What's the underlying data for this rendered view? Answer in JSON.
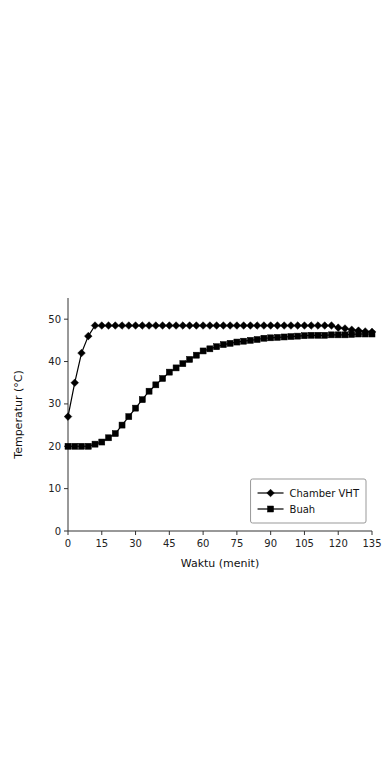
{
  "chart_data": {
    "type": "line",
    "xlabel": "Waktu (menit)",
    "ylabel": "Temperatur (°C)",
    "x": [
      0,
      3,
      6,
      9,
      12,
      15,
      18,
      21,
      24,
      27,
      30,
      33,
      36,
      39,
      42,
      45,
      48,
      51,
      54,
      57,
      60,
      63,
      66,
      69,
      72,
      75,
      78,
      81,
      84,
      87,
      90,
      93,
      96,
      99,
      102,
      105,
      108,
      111,
      114,
      117,
      120,
      123,
      126,
      129,
      132,
      135
    ],
    "series": [
      {
        "name": "Chamber VHT",
        "color": "#000000",
        "marker": "diamond",
        "values": [
          27,
          35,
          42,
          46,
          48.5,
          48.5,
          48.5,
          48.5,
          48.5,
          48.5,
          48.5,
          48.5,
          48.5,
          48.5,
          48.5,
          48.5,
          48.5,
          48.5,
          48.5,
          48.5,
          48.5,
          48.5,
          48.5,
          48.5,
          48.5,
          48.5,
          48.5,
          48.5,
          48.5,
          48.5,
          48.5,
          48.5,
          48.5,
          48.5,
          48.5,
          48.5,
          48.5,
          48.5,
          48.5,
          48.5,
          48.0,
          47.8,
          47.5,
          47.3,
          47.1,
          47.0
        ]
      },
      {
        "name": "Buah",
        "color": "#000000",
        "marker": "square",
        "values": [
          20,
          20,
          20,
          20,
          20.5,
          21,
          22,
          23,
          25,
          27,
          29,
          31,
          33,
          34.5,
          36,
          37.5,
          38.5,
          39.5,
          40.5,
          41.5,
          42.5,
          43.0,
          43.5,
          44.0,
          44.3,
          44.6,
          44.8,
          45.0,
          45.2,
          45.5,
          45.6,
          45.7,
          45.8,
          45.9,
          46.0,
          46.1,
          46.2,
          46.2,
          46.2,
          46.3,
          46.3,
          46.3,
          46.4,
          46.5,
          46.5,
          46.5
        ]
      }
    ],
    "xlim": [
      0,
      135
    ],
    "ylim": [
      0,
      55
    ],
    "xticks": [
      0,
      15,
      30,
      45,
      60,
      75,
      90,
      105,
      120,
      135
    ],
    "yticks": [
      0,
      10,
      20,
      30,
      40,
      50
    ],
    "grid": false,
    "legend": "lower right"
  }
}
